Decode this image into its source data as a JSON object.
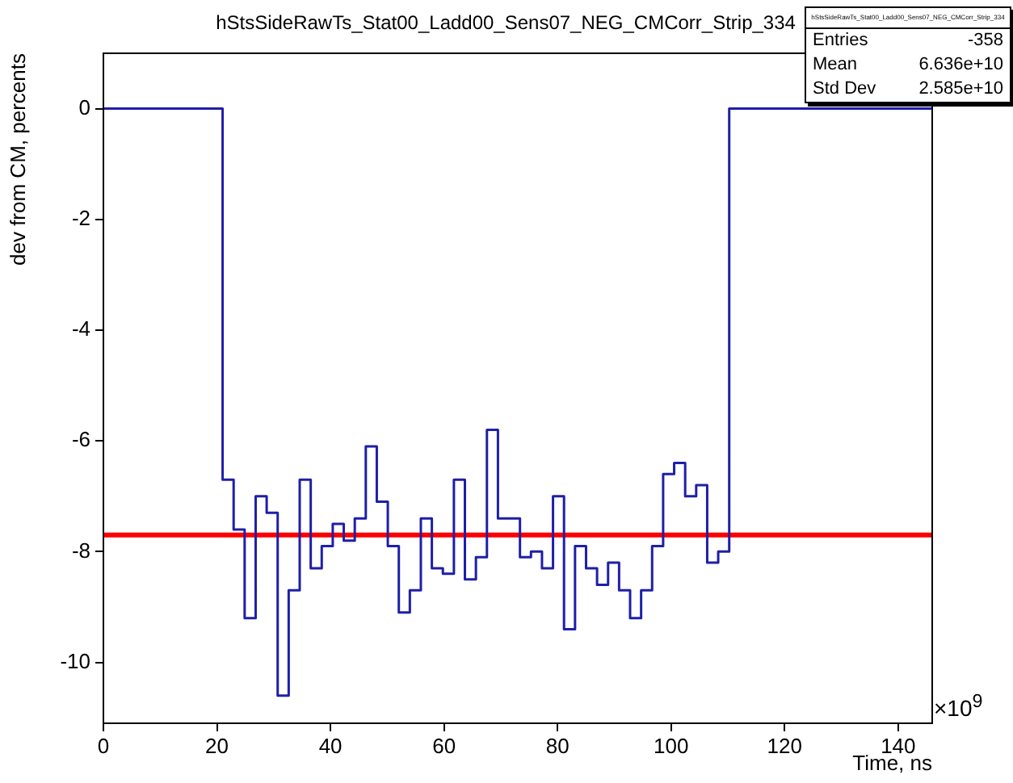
{
  "chart_data": {
    "type": "histogram",
    "title": "hStsSideRawTs_Stat00_Ladd00_Sens07_NEG_CMCorr_Strip_334",
    "xlabel": "Time, ns",
    "ylabel": "dev from CM, percents",
    "bins": [
      0,
      21.0,
      22.94,
      24.88,
      26.82,
      28.76,
      30.7,
      32.64,
      34.58,
      36.52,
      38.46,
      40.4,
      42.34,
      44.28,
      46.22,
      48.16,
      50.1,
      52.04,
      53.98,
      55.92,
      57.86,
      59.8,
      61.74,
      63.68,
      65.62,
      67.56,
      69.5,
      71.44,
      73.38,
      75.32,
      77.26,
      79.2,
      81.14,
      83.08,
      85.02,
      86.96,
      88.9,
      90.84,
      92.78,
      94.72,
      96.66,
      98.6,
      100.54,
      102.48,
      104.42,
      106.36,
      108.3,
      110.24,
      146
    ],
    "values": [
      0,
      -6.7,
      -7.6,
      -9.2,
      -7.0,
      -7.3,
      -10.6,
      -8.7,
      -6.7,
      -8.3,
      -7.9,
      -7.5,
      -7.8,
      -7.4,
      -6.1,
      -7.1,
      -7.9,
      -9.1,
      -8.7,
      -7.4,
      -8.3,
      -8.4,
      -6.7,
      -8.5,
      -8.1,
      -5.8,
      -7.4,
      -7.4,
      -8.1,
      -8.0,
      -8.3,
      -7.0,
      -9.4,
      -7.9,
      -8.3,
      -8.6,
      -8.2,
      -8.7,
      -9.2,
      -8.7,
      -7.9,
      -6.6,
      -6.4,
      -7.0,
      -6.8,
      -8.2,
      -8.0,
      0
    ],
    "color": "#1f1fa8",
    "xlim": [
      0,
      146
    ],
    "xticks": [
      0,
      20,
      40,
      60,
      80,
      100,
      120,
      140
    ],
    "ylim": [
      -11.1,
      1
    ],
    "yticks": [
      0,
      -2,
      -4,
      -6,
      -8,
      -10
    ],
    "ref_lines": [
      {
        "axis": "y",
        "value": -7.7,
        "color": "#ff0000"
      }
    ],
    "grid": false,
    "legend": false,
    "annotations": [
      "hStsSideRawTs_Stat00_Ladd00_Sens07_NEG_CMCorr_Strip_334",
      "Entries",
      "-358",
      "Mean",
      "6.636e+10",
      "Std Dev",
      "2.585e+10",
      "×10$^{9}$"
    ]
  }
}
